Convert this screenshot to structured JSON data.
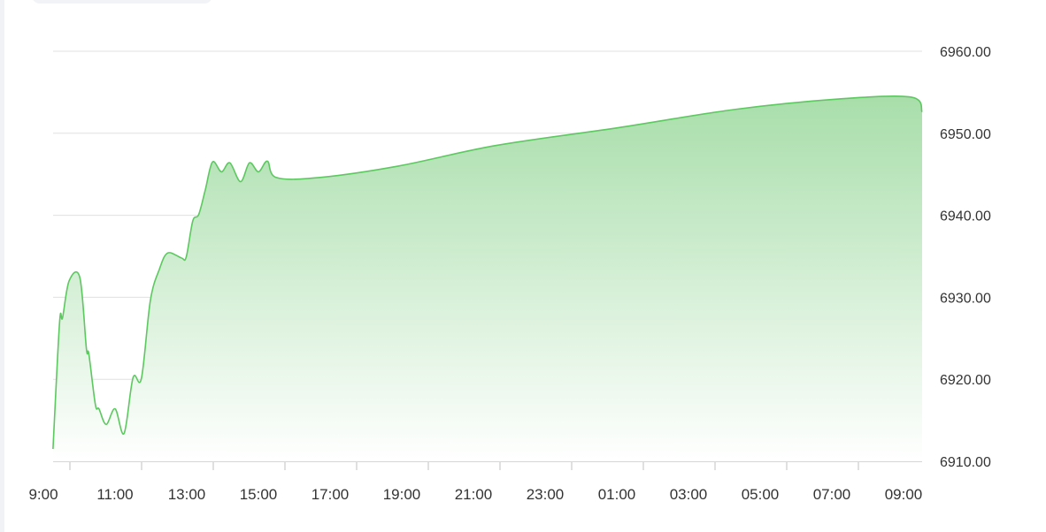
{
  "chart_data": {
    "type": "area",
    "title": "",
    "xlabel": "",
    "ylabel": "",
    "ylim": [
      6910,
      6960
    ],
    "y_ticks": [
      "6960.00",
      "6950.00",
      "6940.00",
      "6930.00",
      "6920.00",
      "6910.00"
    ],
    "x_ticks": [
      "9:00",
      "11:00",
      "13:00",
      "15:00",
      "17:00",
      "19:00",
      "21:00",
      "23:00",
      "01:00",
      "03:00",
      "05:00",
      "07:00",
      "09:00"
    ],
    "grid": true,
    "y_axis_side": "right",
    "colors": {
      "line": "#5cc85f",
      "fill_top": "#a8deaa",
      "fill_bottom": "#ffffff",
      "grid": "#e0e0e0"
    },
    "points": [
      [
        "09:25",
        6911.5
      ],
      [
        "09:36",
        6926.9
      ],
      [
        "09:41",
        6927.5
      ],
      [
        "09:52",
        6932.0
      ],
      [
        "10:10",
        6932.4
      ],
      [
        "10:21",
        6923.7
      ],
      [
        "10:25",
        6923.1
      ],
      [
        "10:36",
        6916.9
      ],
      [
        "10:42",
        6916.4
      ],
      [
        "10:54",
        6914.5
      ],
      [
        "11:09",
        6916.4
      ],
      [
        "11:24",
        6913.4
      ],
      [
        "11:39",
        6920.2
      ],
      [
        "11:53",
        6920.1
      ],
      [
        "12:08",
        6929.6
      ],
      [
        "12:23",
        6933.4
      ],
      [
        "12:37",
        6935.4
      ],
      [
        "13:00",
        6934.8
      ],
      [
        "13:08",
        6934.9
      ],
      [
        "13:19",
        6939.3
      ],
      [
        "13:29",
        6940.1
      ],
      [
        "13:40",
        6943.1
      ],
      [
        "13:52",
        6946.5
      ],
      [
        "14:07",
        6945.3
      ],
      [
        "14:21",
        6946.4
      ],
      [
        "14:39",
        6944.1
      ],
      [
        "14:54",
        6946.4
      ],
      [
        "15:09",
        6945.3
      ],
      [
        "15:24",
        6946.6
      ],
      [
        "15:39",
        6944.6
      ],
      [
        "16:50",
        6944.6
      ],
      [
        "19:03",
        6946.0
      ],
      [
        "21:46",
        6948.5
      ],
      [
        "01:13",
        6950.7
      ],
      [
        "04:26",
        6952.9
      ],
      [
        "07:24",
        6954.2
      ],
      [
        "09:22",
        6954.4
      ],
      [
        "09:40",
        6952.6
      ]
    ]
  }
}
